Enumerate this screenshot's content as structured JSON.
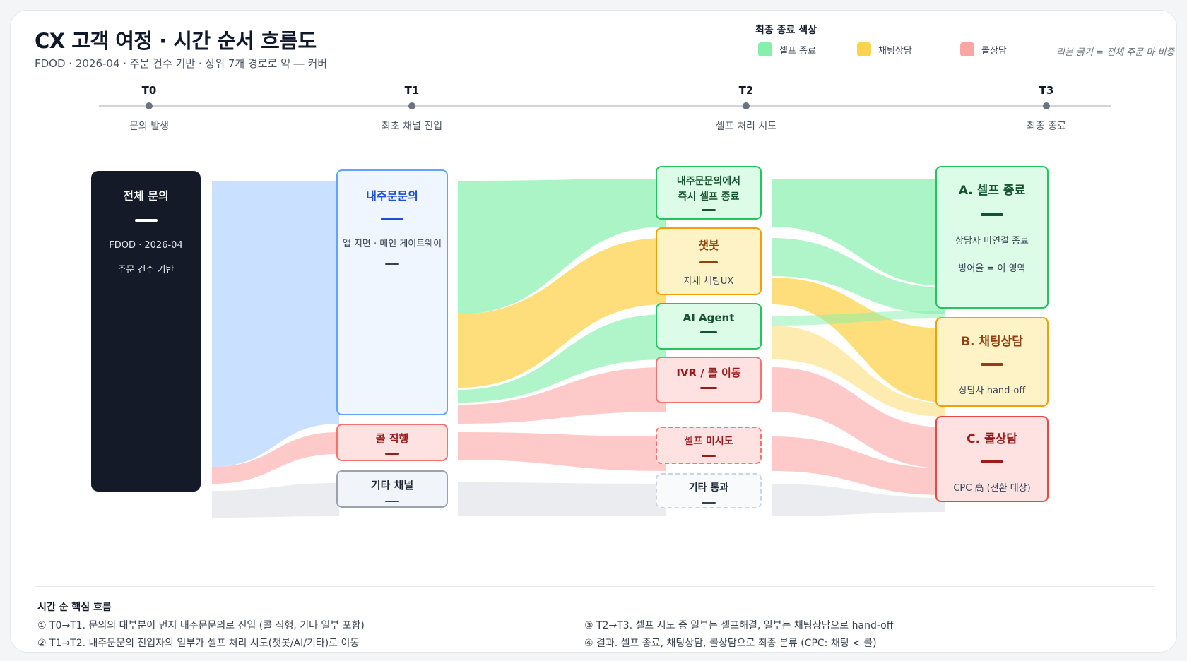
{
  "header": {
    "title": "CX 고객 여정 · 시간 순서 흐름도",
    "subtitle": "FDOD · 2026-04 · 주문 건수 기반 · 상위 7개 경로로 약 ― 커버"
  },
  "legend": {
    "title": "최종 종료 색상",
    "items": [
      {
        "label": "셀프 종료",
        "color": "#86efac"
      },
      {
        "label": "채팅상담",
        "color": "#fcd34d"
      },
      {
        "label": "콜상담",
        "color": "#fca5a5"
      }
    ],
    "note": "리본 굵기 = 전체 주문 마 비중"
  },
  "timeline": [
    {
      "label": "T0",
      "desc": "문의 발생"
    },
    {
      "label": "T1",
      "desc": "최초 채널 진입"
    },
    {
      "label": "T2",
      "desc": "셀프 처리 시도"
    },
    {
      "label": "T3",
      "desc": "최종 종료"
    }
  ],
  "nodes": {
    "total": {
      "title": "전체 문의",
      "line1": "FDOD · 2026-04",
      "line2": "주문 건수 기반"
    },
    "inapp": {
      "title": "내주문문의",
      "sub": "앱 지면 · 메인 게이트웨이"
    },
    "calldirect": {
      "title": "콜 직행"
    },
    "otherchannel": {
      "title": "기타 채널"
    },
    "instantself": {
      "title_line1": "내주문문의에서",
      "title_line2": "즉시 셀프 종료"
    },
    "chatbot": {
      "title": "챗봇",
      "sub": "자체 채팅UX"
    },
    "aiagent": {
      "title": "AI Agent"
    },
    "ivr": {
      "title": "IVR / 콜 이동"
    },
    "noself": {
      "title": "셀프 미시도"
    },
    "otherpass": {
      "title": "기타 통과"
    },
    "endself": {
      "title": "A. 셀프 종료",
      "line1": "상담사 미연결 종료",
      "line2": "방어율 = 이 영역"
    },
    "endchat": {
      "title": "B. 채팅상담",
      "sub": "상담사 hand-off"
    },
    "endcall": {
      "title": "C. 콜상담",
      "sub": "CPC 高 (전환 대상)"
    }
  },
  "notes": {
    "title": "시간 순 핵심 흐름",
    "items": [
      "① T0→T1.  문의의 대부분이 먼저 내주문문의로 진입 (콜 직행, 기타 일부 포함)",
      "② T1→T2.  내주문문의 진입자의 일부가 셀프 처리 시도(챗봇/AI/기타)로 이동",
      "③ T2→T3.  셀프 시도 중 일부는 셀프해결, 일부는 채팅상담으로 hand-off",
      "④ 결과.  셀프 종료, 채팅상담, 콜상담으로 최종 분류 (CPC: 채팅 < 콜)"
    ]
  },
  "colors": {
    "self": "#86efac",
    "chat": "#fcd34d",
    "call": "#fca5a5",
    "blue": "#bfdbfe",
    "gray": "#e5e7eb"
  }
}
